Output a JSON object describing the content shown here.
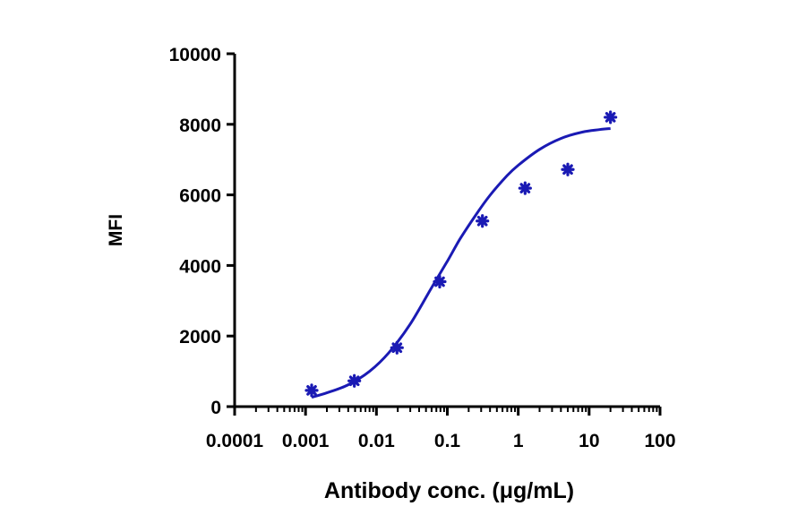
{
  "chart_data": {
    "type": "scatter",
    "xlabel": "Antibody conc. (μg/mL)",
    "ylabel": "MFI",
    "x_scale": "log",
    "xlim": [
      0.0001,
      100
    ],
    "ylim": [
      0,
      10000
    ],
    "x_ticks": [
      0.0001,
      0.001,
      0.01,
      0.1,
      1,
      10,
      100
    ],
    "x_tick_labels": [
      "0.0001",
      "0.001",
      "0.01",
      "0.1",
      "1",
      "10",
      "100"
    ],
    "y_ticks": [
      0,
      2000,
      4000,
      6000,
      8000,
      10000
    ],
    "y_tick_labels": [
      "0",
      "2000",
      "4000",
      "6000",
      "8000",
      "10000"
    ],
    "grid": false,
    "legend": "none",
    "color": "#1a1ab4",
    "series": [
      {
        "marker": "asterisk",
        "x": [
          0.00122,
          0.00488,
          0.0195,
          0.078,
          0.3125,
          1.25,
          5,
          20
        ],
        "y": [
          460,
          730,
          1670,
          3540,
          5260,
          6190,
          6720,
          8200
        ]
      }
    ],
    "fit_curve": {
      "model": "four-parameter logistic",
      "x": [
        0.00122,
        0.002,
        0.004,
        0.008,
        0.015,
        0.03,
        0.06,
        0.1,
        0.15,
        0.25,
        0.4,
        0.7,
        1,
        2,
        4,
        8,
        14,
        20
      ],
      "y": [
        265,
        390,
        620,
        1000,
        1530,
        2340,
        3370,
        4120,
        4740,
        5420,
        5990,
        6550,
        6840,
        7290,
        7600,
        7780,
        7850,
        7880
      ]
    }
  }
}
